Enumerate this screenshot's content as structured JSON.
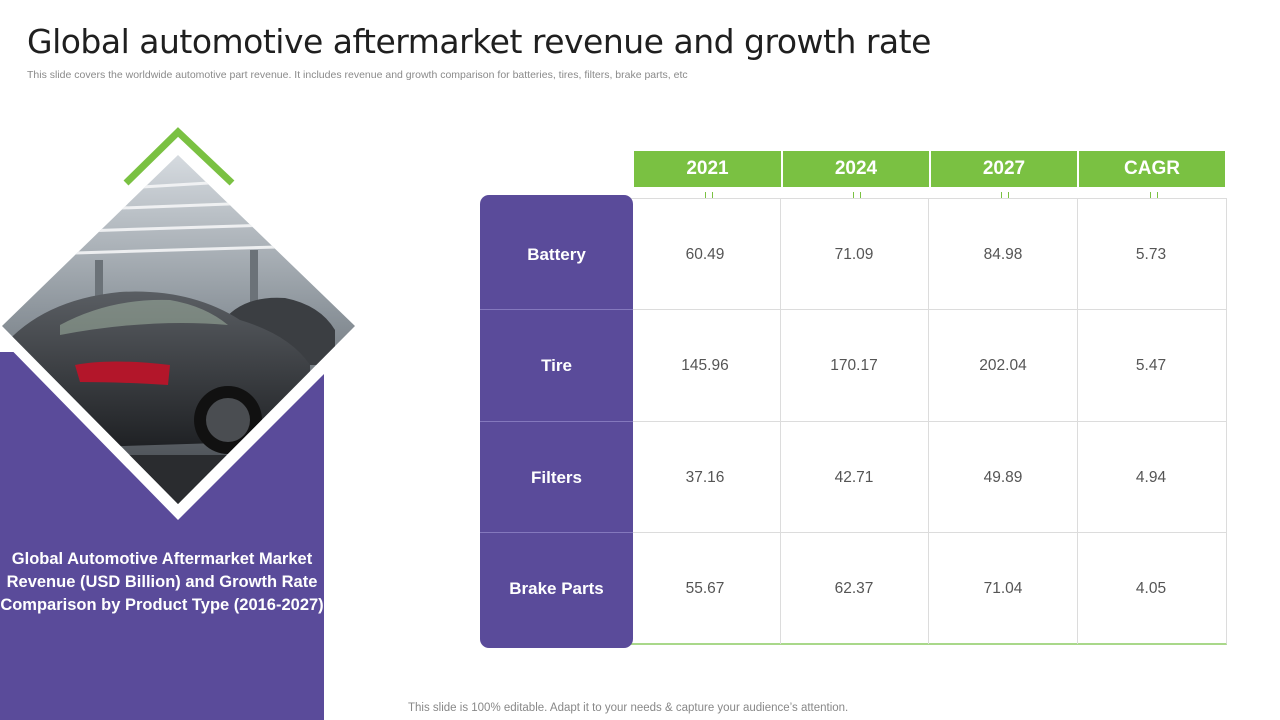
{
  "slide": {
    "title": "Global automotive aftermarket revenue and growth rate",
    "subtitle": "This slide covers the worldwide automotive part revenue. It includes revenue and growth comparison for batteries, tires, filters, brake parts, etc",
    "footer": "This slide is 100% editable. Adapt it to your needs & capture your audience’s attention."
  },
  "panel": {
    "caption": "Global Automotive Aftermarket Market Revenue (USD Billion) and Growth Rate Comparison by Product Type (2016-2027)",
    "image_icon": "car-photo-icon"
  },
  "table": {
    "headers": [
      "2021",
      "2024",
      "2027",
      "CAGR"
    ],
    "rows": [
      {
        "label": "Battery",
        "values": [
          "60.49",
          "71.09",
          "84.98",
          "5.73"
        ]
      },
      {
        "label": "Tire",
        "values": [
          "145.96",
          "170.17",
          "202.04",
          "5.47"
        ]
      },
      {
        "label": "Filters",
        "values": [
          "37.16",
          "42.71",
          "49.89",
          "4.94"
        ]
      },
      {
        "label": "Brake Parts",
        "values": [
          "55.67",
          "62.37",
          "71.04",
          "4.05"
        ]
      }
    ]
  },
  "colors": {
    "purple": "#5a4b9a",
    "green": "#7ac142"
  }
}
